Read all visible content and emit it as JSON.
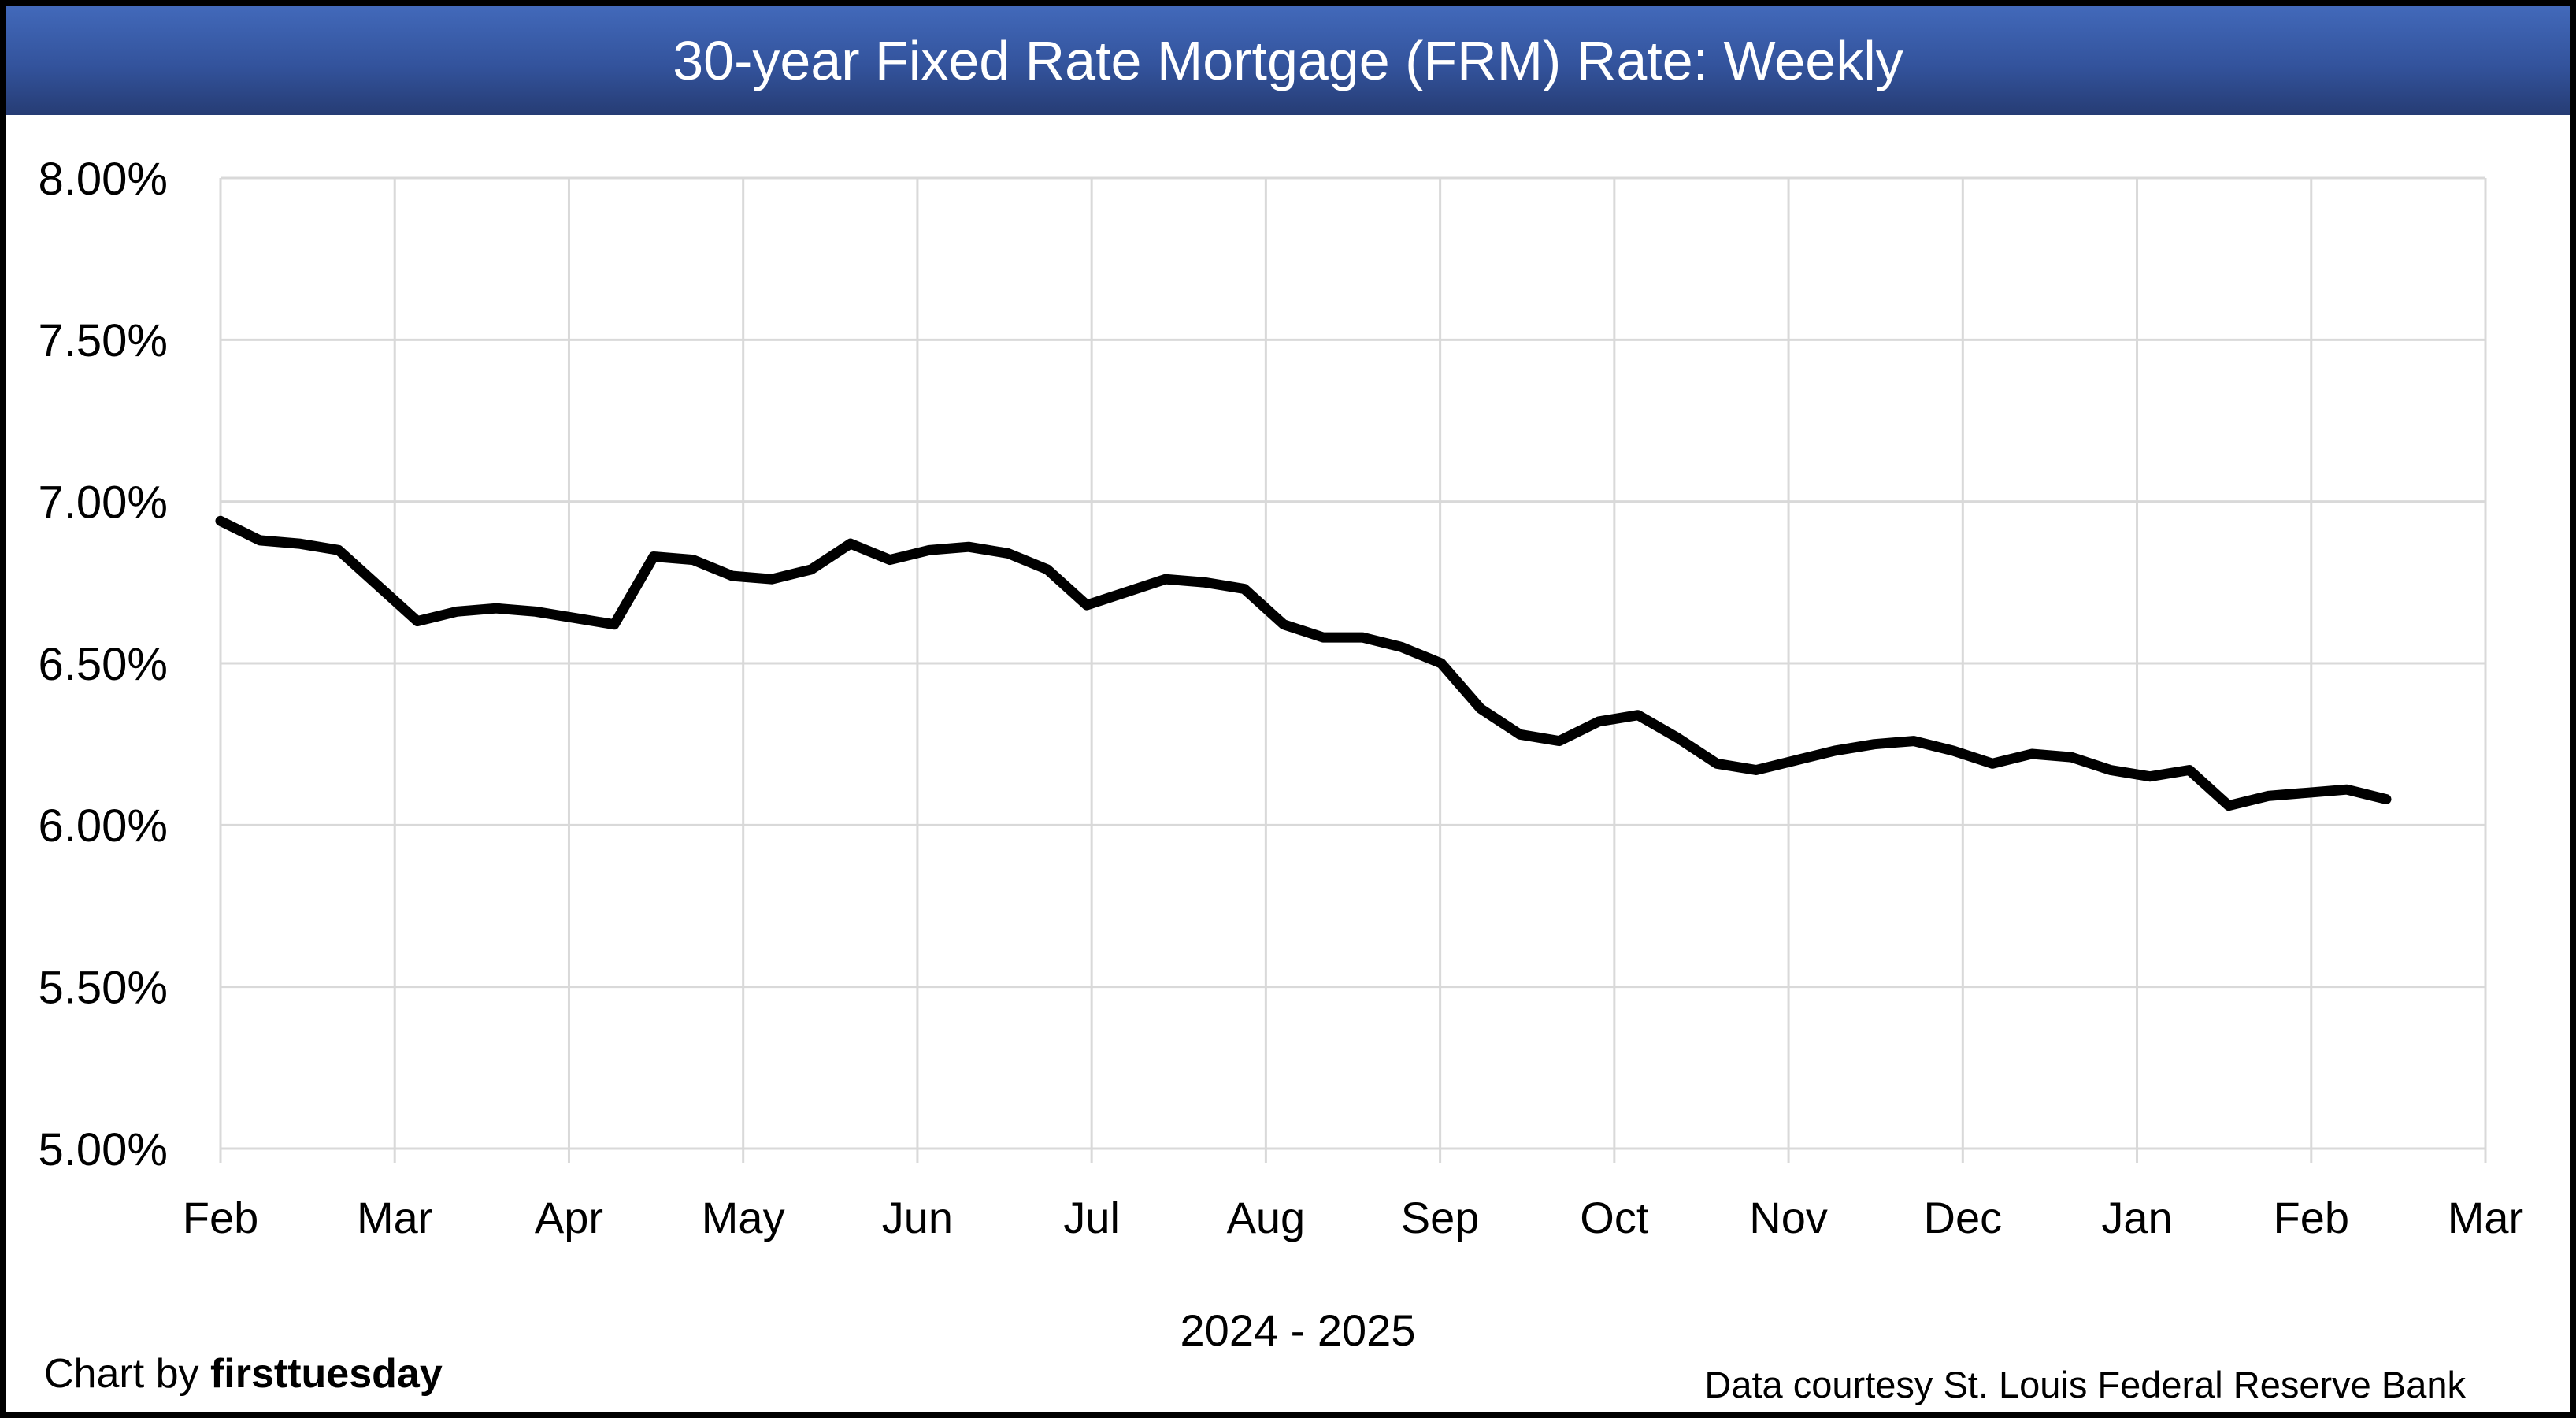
{
  "title": "30-year Fixed Rate Mortgage (FRM) Rate: Weekly",
  "footer": {
    "chart_by_prefix": "Chart by ",
    "chart_by_brand": "firsttuesday",
    "data_courtesy": "Data courtesy St. Louis Federal Reserve Bank"
  },
  "colors": {
    "title_bar_top": "#4269ba",
    "title_bar_bottom": "#263c74",
    "title_text": "#ffffff",
    "gridline": "#d9d9d9",
    "axis_label": "#000000",
    "series_line": "#000000",
    "page_border": "#000000",
    "background": "#ffffff"
  },
  "chart_data": {
    "type": "line",
    "title": "30-year Fixed Rate Mortgage (FRM) Rate: Weekly",
    "xlabel": "2024 - 2025",
    "ylabel": "",
    "x_tick_labels": [
      "Feb",
      "Mar",
      "Apr",
      "May",
      "Jun",
      "Jul",
      "Aug",
      "Sep",
      "Oct",
      "Nov",
      "Dec",
      "Jan",
      "Feb",
      "Mar"
    ],
    "y_tick_labels": [
      "8.00%",
      "7.50%",
      "7.00%",
      "6.50%",
      "6.00%",
      "5.50%",
      "5.00%"
    ],
    "ylim": [
      5.0,
      8.0
    ],
    "y_tick_step": 0.5,
    "grid": true,
    "legend": "none",
    "frequency": "weekly",
    "values": [
      6.94,
      6.88,
      6.87,
      6.85,
      6.74,
      6.63,
      6.66,
      6.67,
      6.66,
      6.64,
      6.62,
      6.83,
      6.82,
      6.77,
      6.76,
      6.79,
      6.87,
      6.82,
      6.85,
      6.86,
      6.84,
      6.79,
      6.68,
      6.72,
      6.76,
      6.75,
      6.73,
      6.62,
      6.58,
      6.58,
      6.55,
      6.5,
      6.36,
      6.28,
      6.26,
      6.32,
      6.34,
      6.27,
      6.19,
      6.17,
      6.2,
      6.23,
      6.25,
      6.26,
      6.23,
      6.19,
      6.22,
      6.21,
      6.17,
      6.15,
      6.17,
      6.06,
      6.09,
      6.1,
      6.11,
      6.08
    ]
  }
}
